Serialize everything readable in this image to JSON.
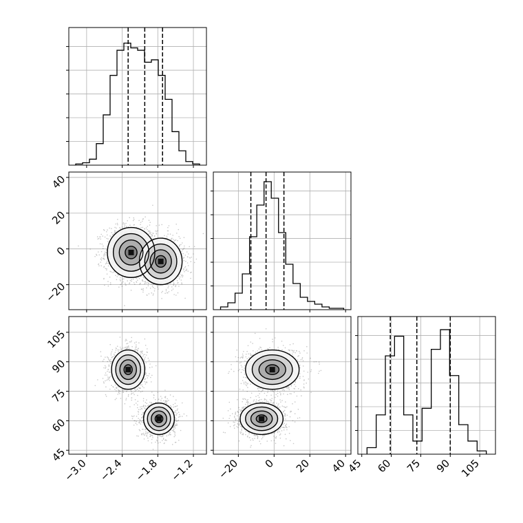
{
  "chart_data": {
    "type": "corner",
    "parameters": [
      {
        "ticks": [
          -3.0,
          -2.4,
          -1.8,
          -1.2
        ],
        "tick_labels": [
          "−3.0",
          "−2.4",
          "−1.8",
          "−1.2"
        ],
        "range": [
          -3.3,
          -0.98
        ],
        "quantiles": [
          -2.3,
          -2.02,
          -1.72
        ]
      },
      {
        "ticks": [
          -20,
          0,
          20,
          40
        ],
        "tick_labels": [
          "−20",
          "0",
          "20",
          "40"
        ],
        "range": [
          -34,
          43
        ],
        "quantiles": [
          -13,
          -4.5,
          5.5
        ]
      },
      {
        "ticks": [
          45,
          60,
          75,
          90,
          105
        ],
        "tick_labels": [
          "45",
          "60",
          "75",
          "90",
          "105"
        ],
        "range": [
          43,
          113
        ],
        "quantiles": [
          59.5,
          73,
          90
        ]
      }
    ],
    "histograms": [
      {
        "counts": [
          1,
          2,
          5,
          18,
          42,
          75,
          96,
          102,
          98,
          96,
          86,
          88,
          75,
          55,
          28,
          12,
          3,
          1
        ],
        "ylim": [
          0,
          115
        ]
      },
      {
        "counts": [
          2,
          5,
          12,
          26,
          53,
          76,
          93,
          81,
          56,
          33,
          19,
          9,
          6,
          4,
          2,
          1,
          1
        ],
        "ylim": [
          0,
          100
        ]
      },
      {
        "counts": [
          2,
          12,
          30,
          36,
          12,
          4,
          14,
          32,
          38,
          24,
          9,
          4,
          1
        ],
        "ylim": [
          0,
          42
        ]
      }
    ],
    "scatter_panels": [
      {
        "row": 1,
        "col": 0,
        "x_param": 0,
        "y_param": 1,
        "components": [
          {
            "weight": 0.55,
            "mean_x": -2.25,
            "mean_y": -2,
            "sd_x": 0.2,
            "sd_y": 7
          },
          {
            "weight": 0.45,
            "mean_x": -1.75,
            "mean_y": -7,
            "sd_x": 0.18,
            "sd_y": 6.5
          }
        ]
      },
      {
        "row": 2,
        "col": 0,
        "x_param": 0,
        "y_param": 2,
        "components": [
          {
            "weight": 0.48,
            "mean_x": -2.3,
            "mean_y": 86,
            "sd_x": 0.14,
            "sd_y": 5
          },
          {
            "weight": 0.52,
            "mean_x": -1.78,
            "mean_y": 61,
            "sd_x": 0.13,
            "sd_y": 4
          }
        ]
      },
      {
        "row": 2,
        "col": 1,
        "x_param": 1,
        "y_param": 2,
        "components": [
          {
            "weight": 0.48,
            "mean_x": -1,
            "mean_y": 86,
            "sd_x": 7.5,
            "sd_y": 5
          },
          {
            "weight": 0.52,
            "mean_x": -7,
            "mean_y": 61,
            "sd_x": 6,
            "sd_y": 4
          }
        ]
      }
    ],
    "grid": true
  }
}
